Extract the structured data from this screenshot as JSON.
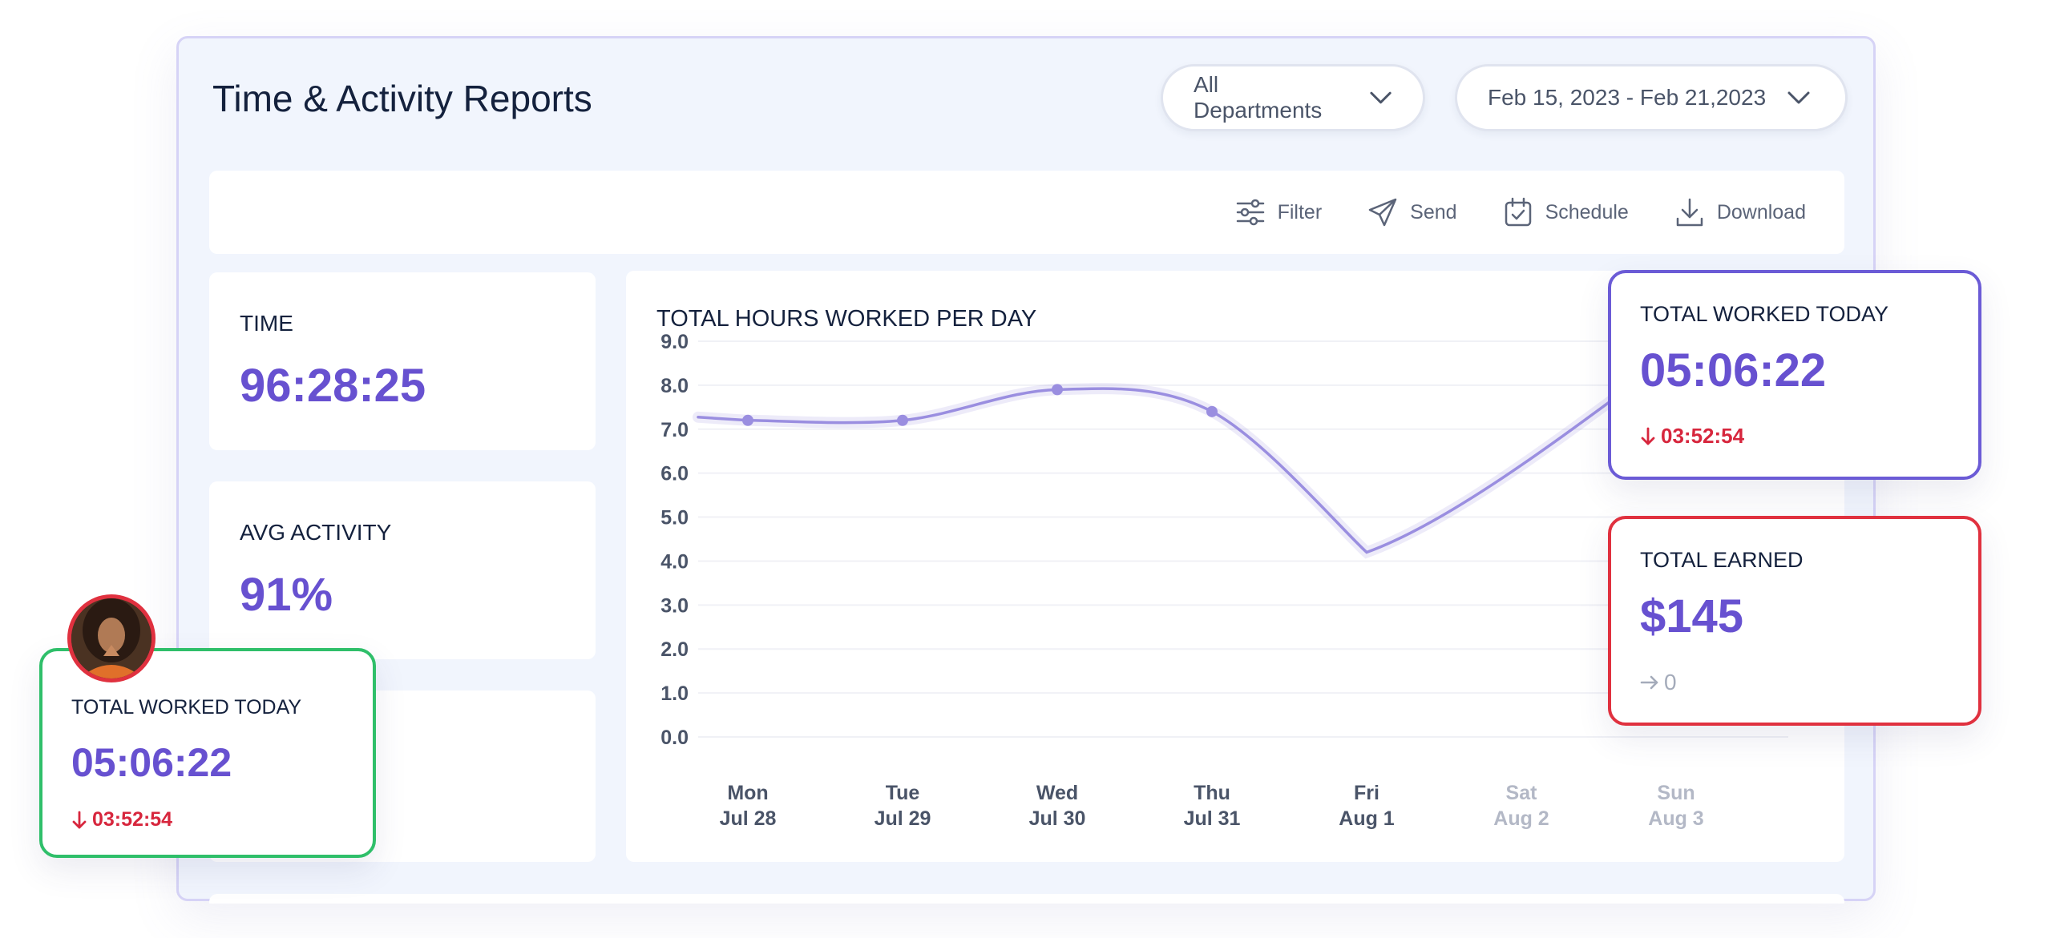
{
  "header": {
    "title": "Time & Activity Reports",
    "department_select": "All Departments",
    "date_range_select": "Feb 15, 2023 - Feb 21,2023"
  },
  "toolbar": {
    "filter_label": "Filter",
    "send_label": "Send",
    "schedule_label": "Schedule",
    "download_label": "Download"
  },
  "stats": {
    "time_label": "TIME",
    "time_value": "96:28:25",
    "activity_label": "AVG ACTIVITY",
    "activity_value": "91%"
  },
  "float_worked_right": {
    "label": "TOTAL WORKED TODAY",
    "value": "05:06:22",
    "delta": "03:52:54"
  },
  "float_earned": {
    "label": "TOTAL EARNED",
    "value": "$145",
    "delta": "0"
  },
  "float_worked_left": {
    "label": "TOTAL WORKED TODAY",
    "value": "05:06:22",
    "delta": "03:52:54"
  },
  "colors": {
    "accent": "#6751d0",
    "line": "#9a8ee0",
    "negative": "#d7263d",
    "card_green": "#2fbf6a",
    "card_red": "#e0313f",
    "card_purple": "#6b5bd6"
  },
  "icons": {
    "filter": "sliders-icon",
    "send": "paper-plane-icon",
    "schedule": "calendar-check-icon",
    "download": "download-icon"
  },
  "chart_data": {
    "type": "line",
    "title": "TOTAL HOURS WORKED PER DAY",
    "categories": [
      [
        "Mon",
        "Jul 28"
      ],
      [
        "Tue",
        "Jul 29"
      ],
      [
        "Wed",
        "Jul 30"
      ],
      [
        "Thu",
        "Jul 31"
      ],
      [
        "Fri",
        "Aug 1"
      ],
      [
        "Sat",
        "Aug 2"
      ],
      [
        "Sun",
        "Aug 3"
      ]
    ],
    "series": [
      {
        "values": [
          7.2,
          7.2,
          7.9,
          7.4,
          4.2,
          null,
          null
        ]
      }
    ],
    "yticks": [
      "0.0",
      "1.0",
      "2.0",
      "3.0",
      "4.0",
      "5.0",
      "6.0",
      "7.0",
      "8.0",
      "9.0"
    ],
    "ylim": [
      0,
      9
    ],
    "grid": true,
    "muted_categories": [
      5,
      6
    ]
  }
}
